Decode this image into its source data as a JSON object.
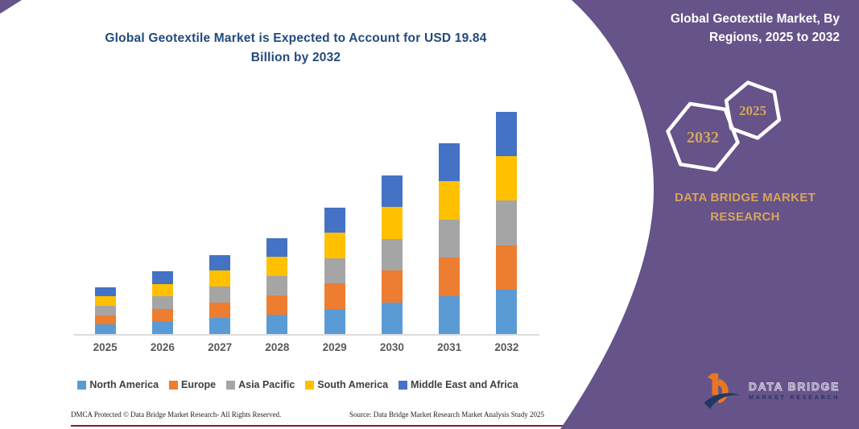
{
  "chart_data": {
    "type": "bar",
    "stacked": true,
    "title": "Global Geotextile Market is Expected to Account for USD 19.84 Billion by 2032",
    "unit": "USD Billion",
    "categories": [
      "2025",
      "2026",
      "2027",
      "2028",
      "2029",
      "2030",
      "2031",
      "2032"
    ],
    "series": [
      {
        "name": "North America",
        "color": "#5B9BD5",
        "values": [
          0.84,
          1.12,
          1.42,
          1.72,
          2.26,
          2.84,
          3.42,
          3.97
        ]
      },
      {
        "name": "Europe",
        "color": "#ED7D31",
        "values": [
          0.84,
          1.12,
          1.42,
          1.72,
          2.26,
          2.84,
          3.42,
          3.97
        ]
      },
      {
        "name": "Asia Pacific",
        "color": "#A5A5A5",
        "values": [
          0.84,
          1.12,
          1.42,
          1.72,
          2.26,
          2.84,
          3.42,
          3.97
        ]
      },
      {
        "name": "South America",
        "color": "#FFC000",
        "values": [
          0.84,
          1.12,
          1.42,
          1.72,
          2.26,
          2.84,
          3.42,
          3.97
        ]
      },
      {
        "name": "Middle East and Africa",
        "color": "#4472C4",
        "values": [
          0.84,
          1.12,
          1.42,
          1.72,
          2.26,
          2.84,
          3.42,
          3.97
        ]
      }
    ],
    "totals": [
      4.2,
      5.6,
      7.1,
      8.6,
      11.3,
      14.2,
      17.1,
      19.84
    ],
    "ylim": [
      0,
      20
    ],
    "gridlines": false,
    "legend_position": "bottom"
  },
  "footer": {
    "dmca": "DMCA Protected © Data Bridge Market Research-  All Rights Reserved.",
    "source": "Source: Data Bridge Market Research  Market Analysis Study 2025"
  },
  "panel": {
    "title": "Global Geotextile Market, By Regions, 2025 to 2032",
    "hexagons": [
      {
        "label": "2032"
      },
      {
        "label": "2025"
      }
    ],
    "brand_lines": [
      "DATA BRIDGE MARKET",
      "RESEARCH"
    ],
    "logo": {
      "line1": "DATA BRIDGE",
      "line2": "MARKET RESEARCH"
    },
    "colors": {
      "panel_purple": "#665389",
      "accent_gold": "#D8A45C",
      "title_blue": "#234A7D",
      "logo_orange": "#E87722",
      "logo_navy": "#1F3864"
    }
  }
}
